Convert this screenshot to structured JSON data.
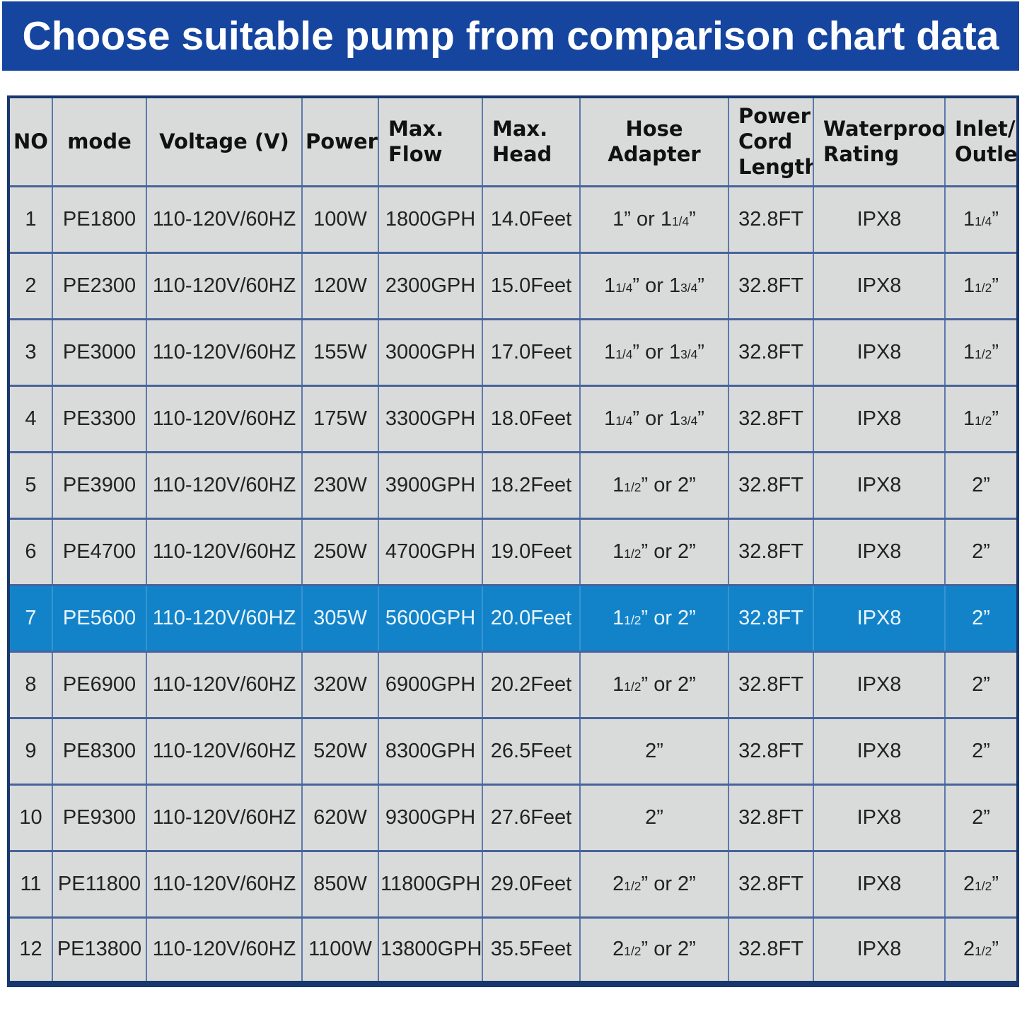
{
  "banner": {
    "title": "Choose suitable pump from comparison chart data",
    "bg_color": "#15459f",
    "text_color": "#ffffff"
  },
  "table": {
    "columns": [
      {
        "key": "no",
        "label": "NO"
      },
      {
        "key": "mode",
        "label": "mode"
      },
      {
        "key": "voltage",
        "label": "Voltage (V)"
      },
      {
        "key": "power",
        "label": "Power"
      },
      {
        "key": "max_flow",
        "label": "Max.\nFlow"
      },
      {
        "key": "max_head",
        "label": "Max.\nHead"
      },
      {
        "key": "hose_adapter",
        "label": "Hose Adapter"
      },
      {
        "key": "power_cord_length",
        "label": "Power\nCord\nLength"
      },
      {
        "key": "waterproof_rating",
        "label": "Waterproof\nRating"
      },
      {
        "key": "inlet_outlet",
        "label": "Inlet/\nOutlet"
      }
    ],
    "rows": [
      {
        "no": "1",
        "mode": "PE1800",
        "voltage": "110-120V/60HZ",
        "power": "100W",
        "max_flow": "1800GPH",
        "max_head": "14.0Feet",
        "hose_adapter": "1” or 1¼”",
        "power_cord_length": "32.8FT",
        "waterproof_rating": "IPX8",
        "inlet_outlet": "1¼”"
      },
      {
        "no": "2",
        "mode": "PE2300",
        "voltage": "110-120V/60HZ",
        "power": "120W",
        "max_flow": "2300GPH",
        "max_head": "15.0Feet",
        "hose_adapter": "1¼” or 1¾”",
        "power_cord_length": "32.8FT",
        "waterproof_rating": "IPX8",
        "inlet_outlet": "1½”"
      },
      {
        "no": "3",
        "mode": "PE3000",
        "voltage": "110-120V/60HZ",
        "power": "155W",
        "max_flow": "3000GPH",
        "max_head": "17.0Feet",
        "hose_adapter": "1¼” or 1¾”",
        "power_cord_length": "32.8FT",
        "waterproof_rating": "IPX8",
        "inlet_outlet": "1½”"
      },
      {
        "no": "4",
        "mode": "PE3300",
        "voltage": "110-120V/60HZ",
        "power": "175W",
        "max_flow": "3300GPH",
        "max_head": "18.0Feet",
        "hose_adapter": "1¼” or 1¾”",
        "power_cord_length": "32.8FT",
        "waterproof_rating": "IPX8",
        "inlet_outlet": "1½”"
      },
      {
        "no": "5",
        "mode": "PE3900",
        "voltage": "110-120V/60HZ",
        "power": "230W",
        "max_flow": "3900GPH",
        "max_head": "18.2Feet",
        "hose_adapter": "1½” or 2”",
        "power_cord_length": "32.8FT",
        "waterproof_rating": "IPX8",
        "inlet_outlet": "2”"
      },
      {
        "no": "6",
        "mode": "PE4700",
        "voltage": "110-120V/60HZ",
        "power": "250W",
        "max_flow": "4700GPH",
        "max_head": "19.0Feet",
        "hose_adapter": "1½” or 2”",
        "power_cord_length": "32.8FT",
        "waterproof_rating": "IPX8",
        "inlet_outlet": "2”"
      },
      {
        "no": "7",
        "mode": "PE5600",
        "voltage": "110-120V/60HZ",
        "power": "305W",
        "max_flow": "5600GPH",
        "max_head": "20.0Feet",
        "hose_adapter": "1½” or 2”",
        "power_cord_length": "32.8FT",
        "waterproof_rating": "IPX8",
        "inlet_outlet": "2”"
      },
      {
        "no": "8",
        "mode": "PE6900",
        "voltage": "110-120V/60HZ",
        "power": "320W",
        "max_flow": "6900GPH",
        "max_head": "20.2Feet",
        "hose_adapter": "1½” or 2”",
        "power_cord_length": "32.8FT",
        "waterproof_rating": "IPX8",
        "inlet_outlet": "2”"
      },
      {
        "no": "9",
        "mode": "PE8300",
        "voltage": "110-120V/60HZ",
        "power": "520W",
        "max_flow": "8300GPH",
        "max_head": "26.5Feet",
        "hose_adapter": "2”",
        "power_cord_length": "32.8FT",
        "waterproof_rating": "IPX8",
        "inlet_outlet": "2”"
      },
      {
        "no": "10",
        "mode": "PE9300",
        "voltage": "110-120V/60HZ",
        "power": "620W",
        "max_flow": "9300GPH",
        "max_head": "27.6Feet",
        "hose_adapter": "2”",
        "power_cord_length": "32.8FT",
        "waterproof_rating": "IPX8",
        "inlet_outlet": "2”"
      },
      {
        "no": "11",
        "mode": "PE11800",
        "voltage": "110-120V/60HZ",
        "power": "850W",
        "max_flow": "11800GPH",
        "max_head": "29.0Feet",
        "hose_adapter": "2½” or 2”",
        "power_cord_length": "32.8FT",
        "waterproof_rating": "IPX8",
        "inlet_outlet": "2½”"
      },
      {
        "no": "12",
        "mode": "PE13800",
        "voltage": "110-120V/60HZ",
        "power": "1100W",
        "max_flow": "13800GPH",
        "max_head": "35.5Feet",
        "hose_adapter": "2½” or 2”",
        "power_cord_length": "32.8FT",
        "waterproof_rating": "IPX8",
        "inlet_outlet": "2½”"
      }
    ],
    "highlight": {
      "row_no": "7",
      "bg_color": "#1283c9",
      "text_color": "#eaf5fc"
    },
    "colors": {
      "cell_bg": "#d9dbda",
      "grid_vertical": "#5b79ad",
      "grid_horizontal": "#47639b",
      "outer_border": "#17376e"
    }
  }
}
